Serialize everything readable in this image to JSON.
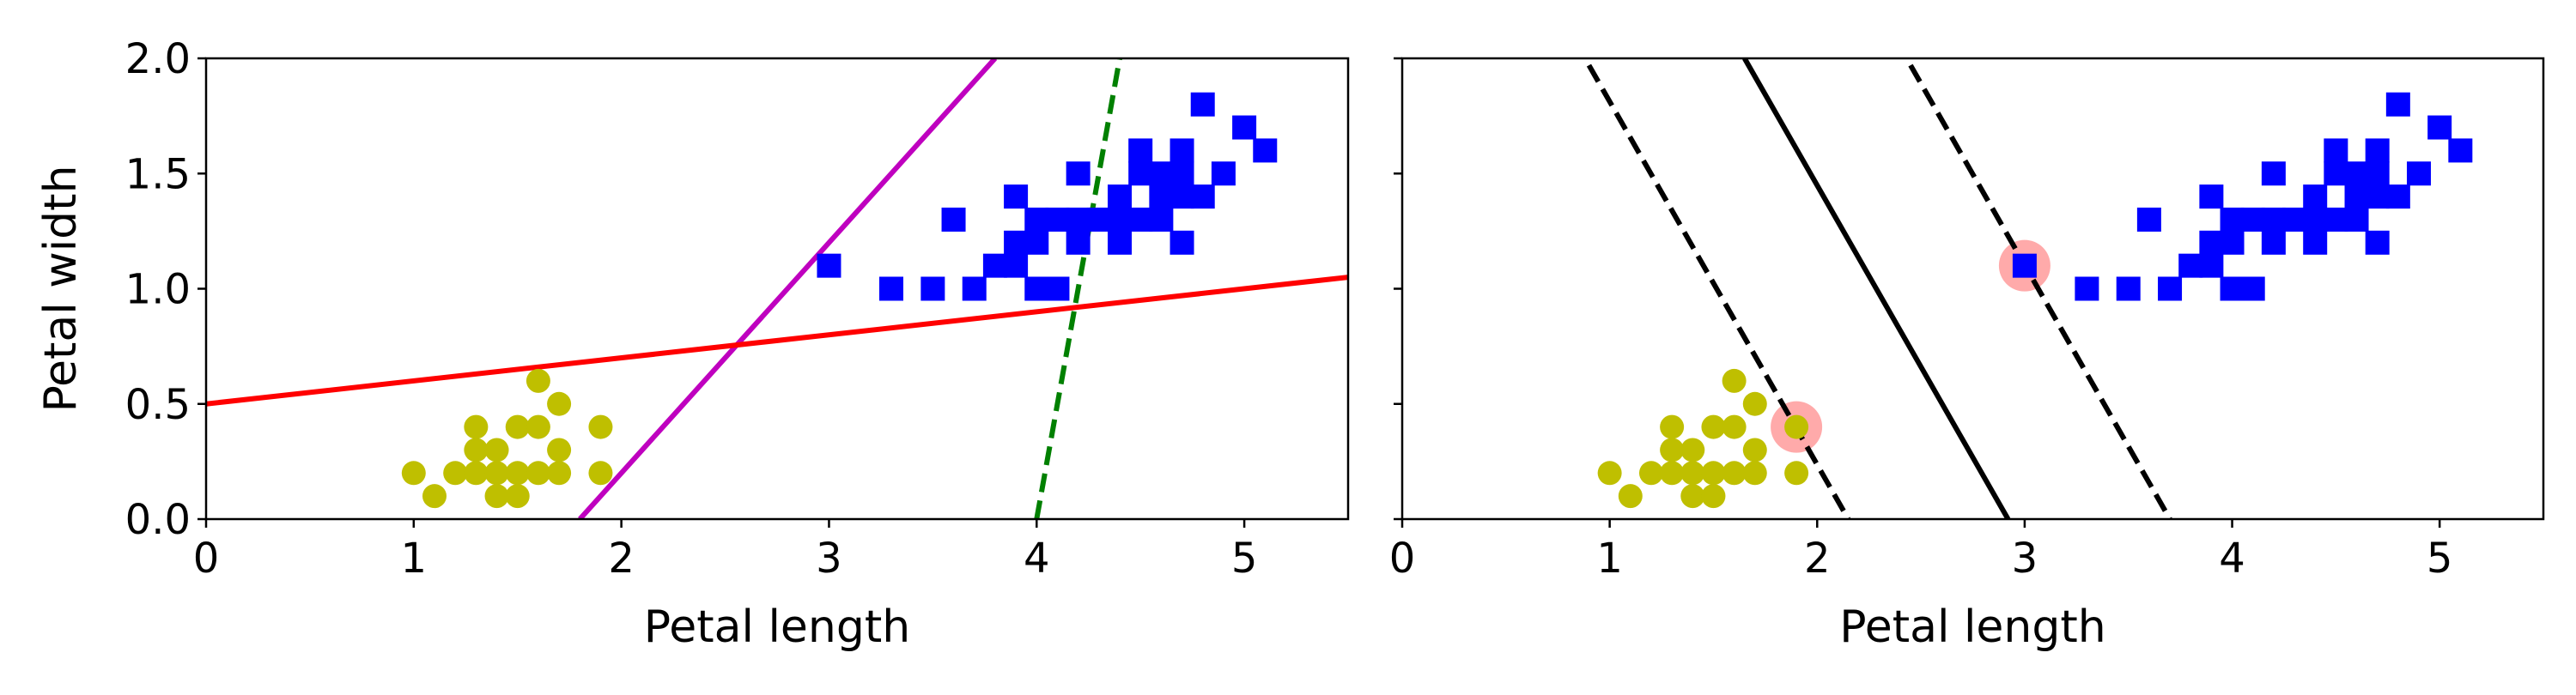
{
  "chart_data": [
    {
      "type": "scatter",
      "panel": "left",
      "xlabel": "Petal length",
      "ylabel": "Petal width",
      "xlim": [
        0,
        5.5
      ],
      "ylim": [
        0,
        2.0
      ],
      "xticks": [
        "0",
        "1",
        "2",
        "3",
        "4",
        "5"
      ],
      "yticks": [
        "0.0",
        "0.5",
        "1.0",
        "1.5",
        "2.0"
      ],
      "grid": false,
      "series": [
        {
          "marker": "circle",
          "color": "#bfbf00",
          "points": [
            [
              1.0,
              0.2
            ],
            [
              1.1,
              0.1
            ],
            [
              1.2,
              0.2
            ],
            [
              1.3,
              0.2
            ],
            [
              1.3,
              0.3
            ],
            [
              1.3,
              0.4
            ],
            [
              1.4,
              0.1
            ],
            [
              1.4,
              0.2
            ],
            [
              1.4,
              0.3
            ],
            [
              1.5,
              0.1
            ],
            [
              1.5,
              0.2
            ],
            [
              1.5,
              0.4
            ],
            [
              1.6,
              0.2
            ],
            [
              1.6,
              0.4
            ],
            [
              1.6,
              0.6
            ],
            [
              1.7,
              0.2
            ],
            [
              1.7,
              0.3
            ],
            [
              1.7,
              0.5
            ],
            [
              1.9,
              0.2
            ],
            [
              1.9,
              0.4
            ]
          ]
        },
        {
          "marker": "square",
          "color": "#0000ff",
          "points": [
            [
              3.0,
              1.1
            ],
            [
              3.3,
              1.0
            ],
            [
              3.5,
              1.0
            ],
            [
              3.6,
              1.3
            ],
            [
              3.7,
              1.0
            ],
            [
              3.8,
              1.1
            ],
            [
              3.9,
              1.1
            ],
            [
              3.9,
              1.2
            ],
            [
              3.9,
              1.4
            ],
            [
              4.0,
              1.0
            ],
            [
              4.0,
              1.2
            ],
            [
              4.0,
              1.3
            ],
            [
              4.1,
              1.0
            ],
            [
              4.1,
              1.3
            ],
            [
              4.2,
              1.2
            ],
            [
              4.2,
              1.3
            ],
            [
              4.2,
              1.5
            ],
            [
              4.3,
              1.3
            ],
            [
              4.4,
              1.2
            ],
            [
              4.4,
              1.3
            ],
            [
              4.4,
              1.4
            ],
            [
              4.5,
              1.3
            ],
            [
              4.5,
              1.5
            ],
            [
              4.5,
              1.6
            ],
            [
              4.6,
              1.3
            ],
            [
              4.6,
              1.4
            ],
            [
              4.6,
              1.5
            ],
            [
              4.7,
              1.2
            ],
            [
              4.7,
              1.4
            ],
            [
              4.7,
              1.5
            ],
            [
              4.7,
              1.6
            ],
            [
              4.8,
              1.4
            ],
            [
              4.8,
              1.8
            ],
            [
              4.9,
              1.5
            ],
            [
              5.0,
              1.7
            ],
            [
              5.1,
              1.6
            ]
          ]
        }
      ],
      "lines": [
        {
          "color": "#008000",
          "style": "dashed",
          "x": [
            4.0,
            4.4
          ],
          "y": [
            0.0,
            2.0
          ]
        },
        {
          "color": "#bf00bf",
          "style": "solid",
          "x": [
            1.8,
            3.8
          ],
          "y": [
            0.0,
            2.0
          ]
        },
        {
          "color": "#ff0000",
          "style": "solid",
          "x": [
            0,
            5.5
          ],
          "y": [
            0.5,
            1.05
          ]
        }
      ]
    },
    {
      "type": "scatter",
      "panel": "right",
      "xlabel": "Petal length",
      "ylabel": "",
      "xlim": [
        0,
        5.5
      ],
      "ylim": [
        0,
        2.0
      ],
      "xticks": [
        "0",
        "1",
        "2",
        "3",
        "4",
        "5"
      ],
      "yticks": [],
      "grid": false,
      "series": [
        {
          "marker": "circle",
          "color": "#bfbf00",
          "points": [
            [
              1.0,
              0.2
            ],
            [
              1.1,
              0.1
            ],
            [
              1.2,
              0.2
            ],
            [
              1.3,
              0.2
            ],
            [
              1.3,
              0.3
            ],
            [
              1.3,
              0.4
            ],
            [
              1.4,
              0.1
            ],
            [
              1.4,
              0.2
            ],
            [
              1.4,
              0.3
            ],
            [
              1.5,
              0.1
            ],
            [
              1.5,
              0.2
            ],
            [
              1.5,
              0.4
            ],
            [
              1.6,
              0.2
            ],
            [
              1.6,
              0.4
            ],
            [
              1.6,
              0.6
            ],
            [
              1.7,
              0.2
            ],
            [
              1.7,
              0.3
            ],
            [
              1.7,
              0.5
            ],
            [
              1.9,
              0.2
            ],
            [
              1.9,
              0.4
            ]
          ]
        },
        {
          "marker": "square",
          "color": "#0000ff",
          "points": [
            [
              3.0,
              1.1
            ],
            [
              3.3,
              1.0
            ],
            [
              3.5,
              1.0
            ],
            [
              3.6,
              1.3
            ],
            [
              3.7,
              1.0
            ],
            [
              3.8,
              1.1
            ],
            [
              3.9,
              1.1
            ],
            [
              3.9,
              1.2
            ],
            [
              3.9,
              1.4
            ],
            [
              4.0,
              1.0
            ],
            [
              4.0,
              1.2
            ],
            [
              4.0,
              1.3
            ],
            [
              4.1,
              1.0
            ],
            [
              4.1,
              1.3
            ],
            [
              4.2,
              1.2
            ],
            [
              4.2,
              1.3
            ],
            [
              4.2,
              1.5
            ],
            [
              4.3,
              1.3
            ],
            [
              4.4,
              1.2
            ],
            [
              4.4,
              1.3
            ],
            [
              4.4,
              1.4
            ],
            [
              4.5,
              1.3
            ],
            [
              4.5,
              1.5
            ],
            [
              4.5,
              1.6
            ],
            [
              4.6,
              1.3
            ],
            [
              4.6,
              1.4
            ],
            [
              4.6,
              1.5
            ],
            [
              4.7,
              1.2
            ],
            [
              4.7,
              1.4
            ],
            [
              4.7,
              1.5
            ],
            [
              4.7,
              1.6
            ],
            [
              4.8,
              1.4
            ],
            [
              4.8,
              1.8
            ],
            [
              4.9,
              1.5
            ],
            [
              5.0,
              1.7
            ],
            [
              5.1,
              1.6
            ]
          ]
        }
      ],
      "support_vectors": {
        "color": "#ffaaaa",
        "points": [
          [
            1.9,
            0.4
          ],
          [
            3.0,
            1.1
          ]
        ]
      },
      "lines": [
        {
          "color": "#000000",
          "style": "solid",
          "x": [
            1.65,
            2.92
          ],
          "y": [
            2.0,
            0.0
          ]
        },
        {
          "color": "#000000",
          "style": "dashed",
          "x": [
            0.9,
            2.15
          ],
          "y": [
            1.97,
            0.0
          ]
        },
        {
          "color": "#000000",
          "style": "dashed",
          "x": [
            2.45,
            3.7
          ],
          "y": [
            1.97,
            0.0
          ]
        }
      ]
    }
  ]
}
